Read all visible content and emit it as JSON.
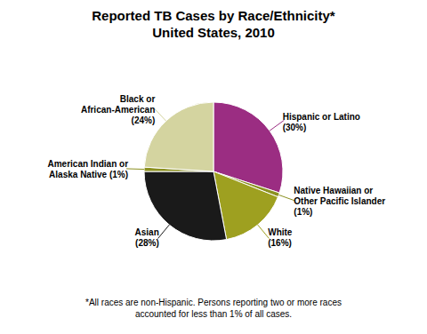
{
  "chart_data": {
    "type": "pie",
    "title": "Reported TB Cases by Race/Ethnicity*\nUnited States, 2010",
    "annotations": [
      "*All races are non-Hispanic. Persons reporting two or more races\naccounted for less than 1% of all cases."
    ],
    "categories": [
      "Hispanic or Latino\n(30%)",
      "Native Hawaiian or\nOther Pacific Islander\n(1%)",
      "White\n(16%)",
      "Asian\n(28%)",
      "American Indian or\nAlaska Native (1%)",
      "Black or\nAfrican-American\n(24%)"
    ],
    "values": [
      30,
      1,
      16,
      28,
      1,
      24
    ],
    "colors": [
      "#9B2D82",
      "#8B9020",
      "#9EA020",
      "#1A1A1A",
      "#8B9020",
      "#D4D4A0"
    ]
  }
}
